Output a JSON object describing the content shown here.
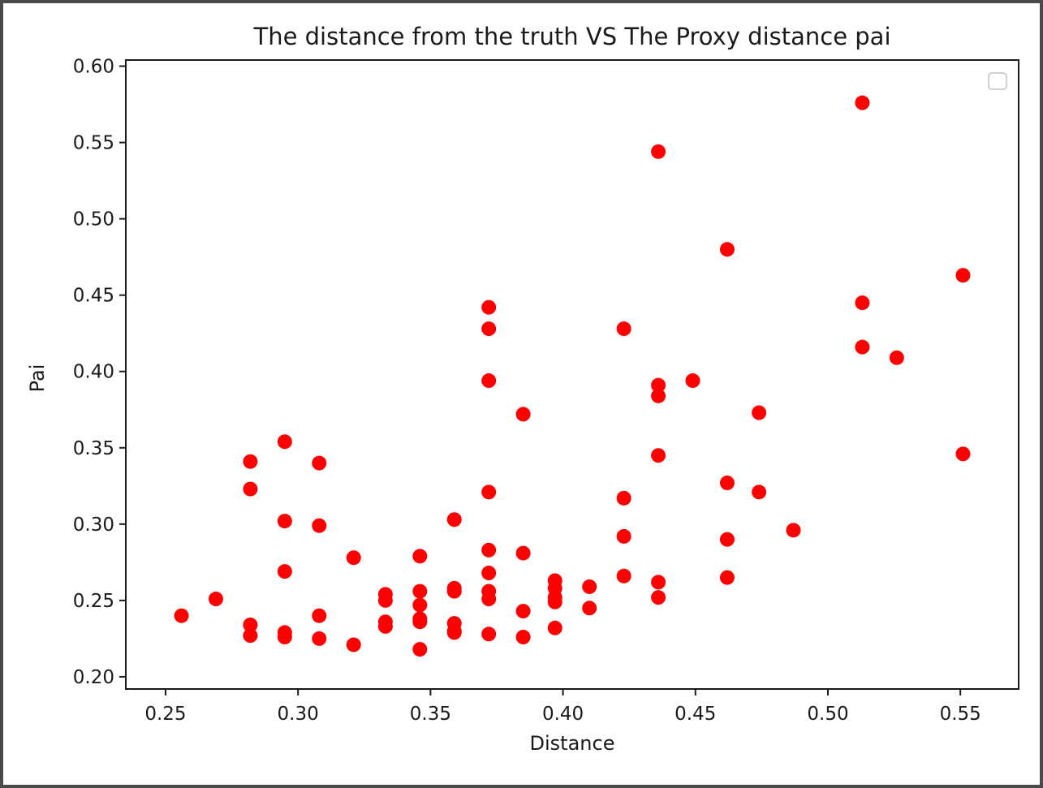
{
  "chart_data": {
    "type": "scatter",
    "title": "The distance from the truth VS The Proxy distance pai",
    "xlabel": "Distance",
    "ylabel": "Pai",
    "xlim": [
      0.235,
      0.572
    ],
    "ylim": [
      0.192,
      0.604
    ],
    "xticks": [
      0.25,
      0.3,
      0.35,
      0.4,
      0.45,
      0.5,
      0.55
    ],
    "xtick_labels": [
      "0.25",
      "0.30",
      "0.35",
      "0.40",
      "0.45",
      "0.50",
      "0.55"
    ],
    "yticks": [
      0.2,
      0.25,
      0.3,
      0.35,
      0.4,
      0.45,
      0.5,
      0.55,
      0.6
    ],
    "ytick_labels": [
      "0.20",
      "0.25",
      "0.30",
      "0.35",
      "0.40",
      "0.45",
      "0.50",
      "0.55",
      "0.60"
    ],
    "grid": false,
    "legend": "top-right",
    "point_color": "#ff0000",
    "series": [
      {
        "x": [
          0.256,
          0.269,
          0.282,
          0.282,
          0.282,
          0.282,
          0.295,
          0.295,
          0.295,
          0.295,
          0.295,
          0.308,
          0.308,
          0.308,
          0.308,
          0.321,
          0.321,
          0.333,
          0.333,
          0.333,
          0.333,
          0.346,
          0.346,
          0.346,
          0.346,
          0.346,
          0.346,
          0.359,
          0.359,
          0.359,
          0.359,
          0.359,
          0.359,
          0.372,
          0.372,
          0.372,
          0.372,
          0.372,
          0.372,
          0.372,
          0.372,
          0.372,
          0.385,
          0.385,
          0.385,
          0.385,
          0.397,
          0.397,
          0.397,
          0.397,
          0.397,
          0.41,
          0.41,
          0.423,
          0.423,
          0.423,
          0.423,
          0.436,
          0.436,
          0.436,
          0.436,
          0.436,
          0.436,
          0.449,
          0.462,
          0.462,
          0.462,
          0.462,
          0.474,
          0.474,
          0.487,
          0.513,
          0.513,
          0.513,
          0.526,
          0.551,
          0.551
        ],
        "y": [
          0.24,
          0.251,
          0.341,
          0.323,
          0.234,
          0.227,
          0.354,
          0.302,
          0.269,
          0.229,
          0.226,
          0.34,
          0.299,
          0.24,
          0.225,
          0.278,
          0.221,
          0.254,
          0.25,
          0.236,
          0.233,
          0.279,
          0.256,
          0.247,
          0.238,
          0.236,
          0.218,
          0.303,
          0.258,
          0.256,
          0.235,
          0.23,
          0.229,
          0.442,
          0.428,
          0.394,
          0.321,
          0.283,
          0.268,
          0.256,
          0.251,
          0.228,
          0.372,
          0.281,
          0.243,
          0.226,
          0.263,
          0.258,
          0.252,
          0.249,
          0.232,
          0.259,
          0.245,
          0.428,
          0.317,
          0.292,
          0.266,
          0.544,
          0.391,
          0.384,
          0.345,
          0.262,
          0.252,
          0.394,
          0.48,
          0.327,
          0.29,
          0.265,
          0.321,
          0.373,
          0.296,
          0.576,
          0.445,
          0.416,
          0.409,
          0.463,
          0.346
        ]
      }
    ]
  }
}
